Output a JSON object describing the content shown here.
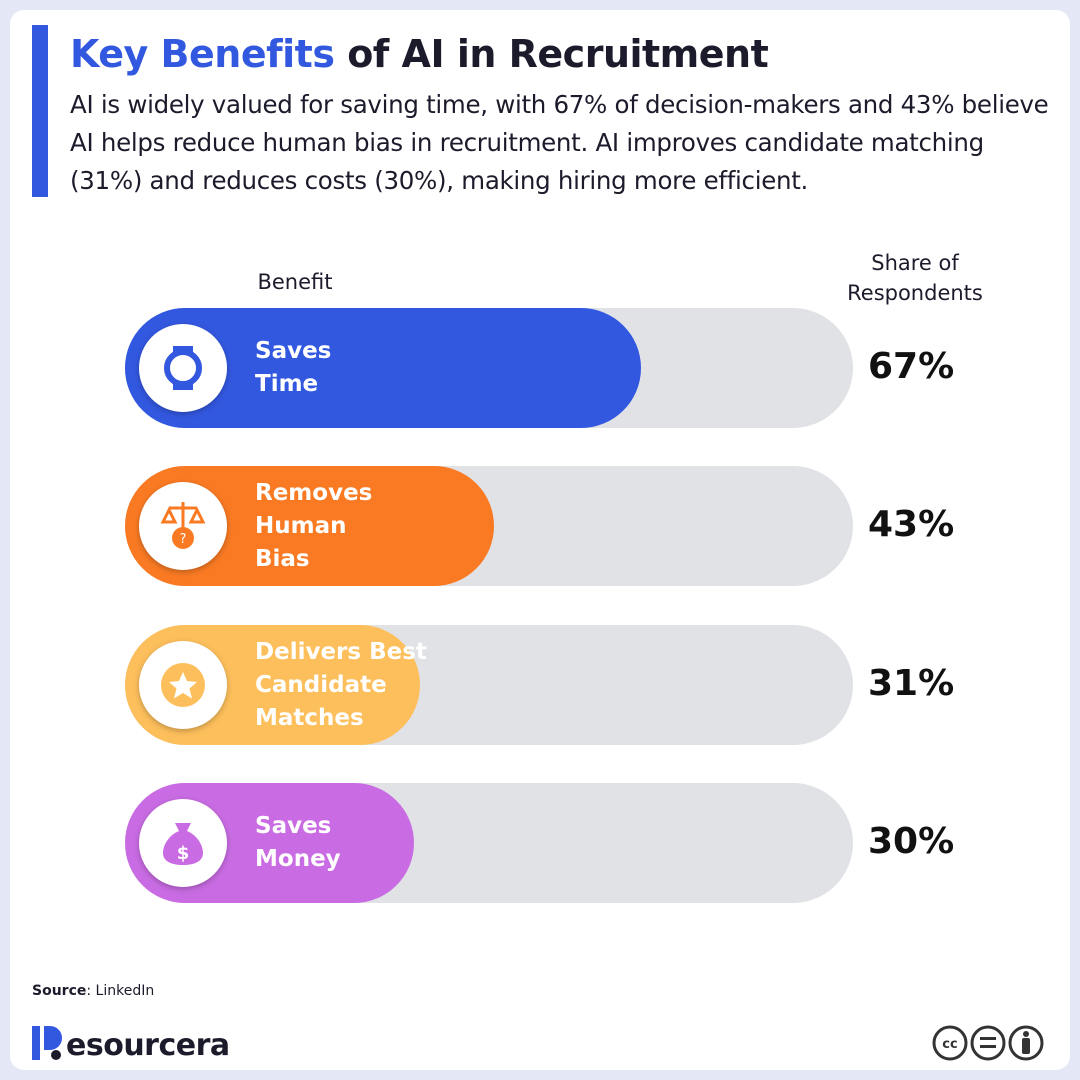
{
  "chart_data": {
    "type": "bar",
    "title_highlight": "Key Benefits",
    "title_rest": "of AI in Recruitment",
    "subtitle": "AI is widely valued for saving time, with 67% of decision-makers and 43% believe AI helps reduce human bias in recruitment. AI improves candidate matching (31%) and reduces costs (30%), making hiring more efficient.",
    "category_header": "Benefit",
    "value_header": "Share of Respondents",
    "categories": [
      "Saves Time",
      "Removes Human Bias",
      "Delivers Best Candidate Matches",
      "Saves Money"
    ],
    "values": [
      67,
      43,
      31,
      30
    ],
    "value_labels": [
      "67%",
      "43%",
      "31%",
      "30%"
    ],
    "colors": [
      "#3358e0",
      "#f97a23",
      "#fdbf5c",
      "#c96ce3"
    ],
    "xlim": [
      0,
      100
    ],
    "source_label": "Source",
    "source": "LinkedIn",
    "brand": "esourcera"
  }
}
